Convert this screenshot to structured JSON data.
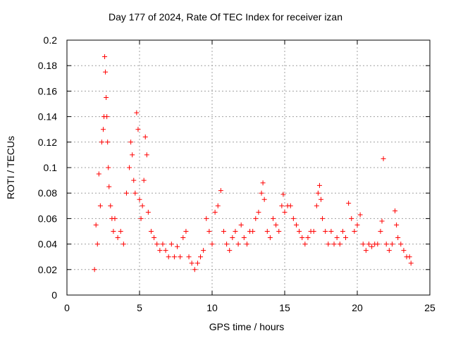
{
  "chart_data": {
    "type": "scatter",
    "title": "Day 177 of 2024, Rate Of TEC Index for receiver izan",
    "xlabel": "GPS time / hours",
    "ylabel": "ROTI / TECUs",
    "xlim": [
      0,
      25
    ],
    "ylim": [
      0,
      0.2
    ],
    "xticks": [
      0,
      5,
      10,
      15,
      20,
      25
    ],
    "xtick_labels": [
      "0",
      "5",
      "10",
      "15",
      "20",
      "25"
    ],
    "yticks": [
      0,
      0.02,
      0.04,
      0.06,
      0.08,
      0.1,
      0.12,
      0.14,
      0.16,
      0.18,
      0.2
    ],
    "ytick_labels": [
      "0",
      "0.02",
      "0.04",
      "0.06",
      "0.08",
      "0.1",
      "0.12",
      "0.14",
      "0.16",
      "0.18",
      "0.2"
    ],
    "grid": true,
    "marker": "+",
    "color": "#ff0000",
    "series": [
      {
        "x": [
          1.9,
          2.0,
          2.1,
          2.2,
          2.3,
          2.4,
          2.5,
          2.55,
          2.6,
          2.65,
          2.7,
          2.75,
          2.8,
          2.85,
          2.9,
          3.0,
          3.1,
          3.2,
          3.3,
          3.5,
          3.7,
          3.9,
          4.1,
          4.3,
          4.4,
          4.5,
          4.6,
          4.7,
          4.8,
          4.9,
          5.0,
          5.1,
          5.2,
          5.3,
          5.4,
          5.5,
          5.6,
          5.8,
          6.0,
          6.2,
          6.4,
          6.6,
          6.8,
          7.0,
          7.2,
          7.4,
          7.6,
          7.8,
          8.0,
          8.2,
          8.4,
          8.6,
          8.8,
          9.0,
          9.2,
          9.4,
          9.6,
          9.8,
          10.0,
          10.2,
          10.4,
          10.6,
          10.8,
          11.0,
          11.2,
          11.4,
          11.6,
          11.8,
          12.0,
          12.2,
          12.4,
          12.6,
          12.8,
          13.0,
          13.2,
          13.4,
          13.5,
          13.6,
          13.8,
          14.0,
          14.2,
          14.4,
          14.6,
          14.8,
          14.9,
          15.0,
          15.2,
          15.4,
          15.6,
          15.8,
          16.0,
          16.2,
          16.4,
          16.6,
          16.8,
          17.0,
          17.2,
          17.3,
          17.4,
          17.5,
          17.6,
          17.8,
          18.0,
          18.2,
          18.4,
          18.6,
          18.8,
          19.0,
          19.2,
          19.4,
          19.6,
          19.8,
          20.0,
          20.2,
          20.4,
          20.6,
          20.8,
          21.0,
          21.2,
          21.4,
          21.6,
          21.7,
          21.8,
          22.0,
          22.2,
          22.4,
          22.6,
          22.7,
          22.8,
          23.0,
          23.2,
          23.4,
          23.6,
          23.7
        ],
        "y": [
          0.02,
          0.055,
          0.04,
          0.095,
          0.07,
          0.12,
          0.13,
          0.14,
          0.187,
          0.175,
          0.155,
          0.14,
          0.12,
          0.1,
          0.085,
          0.07,
          0.06,
          0.05,
          0.06,
          0.045,
          0.05,
          0.04,
          0.08,
          0.1,
          0.12,
          0.11,
          0.09,
          0.08,
          0.143,
          0.13,
          0.075,
          0.06,
          0.07,
          0.09,
          0.124,
          0.11,
          0.065,
          0.05,
          0.045,
          0.04,
          0.035,
          0.04,
          0.035,
          0.03,
          0.04,
          0.03,
          0.038,
          0.03,
          0.045,
          0.05,
          0.03,
          0.025,
          0.02,
          0.025,
          0.03,
          0.035,
          0.06,
          0.05,
          0.04,
          0.065,
          0.07,
          0.082,
          0.05,
          0.04,
          0.035,
          0.045,
          0.05,
          0.04,
          0.055,
          0.045,
          0.04,
          0.05,
          0.05,
          0.06,
          0.065,
          0.08,
          0.088,
          0.075,
          0.05,
          0.045,
          0.06,
          0.055,
          0.05,
          0.07,
          0.079,
          0.065,
          0.07,
          0.07,
          0.06,
          0.055,
          0.05,
          0.045,
          0.04,
          0.045,
          0.05,
          0.05,
          0.07,
          0.08,
          0.086,
          0.075,
          0.06,
          0.05,
          0.04,
          0.05,
          0.04,
          0.045,
          0.04,
          0.05,
          0.045,
          0.072,
          0.06,
          0.05,
          0.055,
          0.063,
          0.04,
          0.035,
          0.04,
          0.038,
          0.04,
          0.04,
          0.05,
          0.058,
          0.107,
          0.04,
          0.035,
          0.04,
          0.066,
          0.055,
          0.045,
          0.04,
          0.035,
          0.03,
          0.03,
          0.025
        ]
      }
    ]
  }
}
